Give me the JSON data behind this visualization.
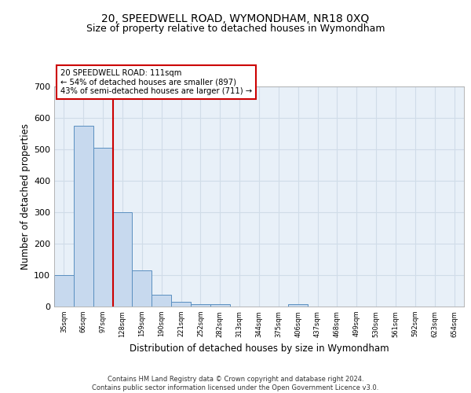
{
  "title1": "20, SPEEDWELL ROAD, WYMONDHAM, NR18 0XQ",
  "title2": "Size of property relative to detached houses in Wymondham",
  "xlabel": "Distribution of detached houses by size in Wymondham",
  "ylabel": "Number of detached properties",
  "footer1": "Contains HM Land Registry data © Crown copyright and database right 2024.",
  "footer2": "Contains public sector information licensed under the Open Government Licence v3.0.",
  "bin_labels": [
    "35sqm",
    "66sqm",
    "97sqm",
    "128sqm",
    "159sqm",
    "190sqm",
    "221sqm",
    "252sqm",
    "282sqm",
    "313sqm",
    "344sqm",
    "375sqm",
    "406sqm",
    "437sqm",
    "468sqm",
    "499sqm",
    "530sqm",
    "561sqm",
    "592sqm",
    "623sqm",
    "654sqm"
  ],
  "bar_values": [
    100,
    575,
    505,
    300,
    115,
    37,
    15,
    8,
    7,
    0,
    0,
    0,
    8,
    0,
    0,
    0,
    0,
    0,
    0,
    0,
    0
  ],
  "bar_color": "#c7d9ee",
  "bar_edge_color": "#5a8fc0",
  "red_line_bin_index": 2,
  "annotation_line1": "20 SPEEDWELL ROAD: 111sqm",
  "annotation_line2": "← 54% of detached houses are smaller (897)",
  "annotation_line3": "43% of semi-detached houses are larger (711) →",
  "annotation_box_color": "#ffffff",
  "annotation_box_edge_color": "#cc0000",
  "red_line_color": "#cc0000",
  "ylim": [
    0,
    700
  ],
  "yticks": [
    0,
    100,
    200,
    300,
    400,
    500,
    600,
    700
  ],
  "grid_color": "#d0dce8",
  "background_color": "#e8f0f8",
  "title1_fontsize": 10,
  "title2_fontsize": 9,
  "xlabel_fontsize": 8.5,
  "ylabel_fontsize": 8.5,
  "bar_width": 1.0
}
